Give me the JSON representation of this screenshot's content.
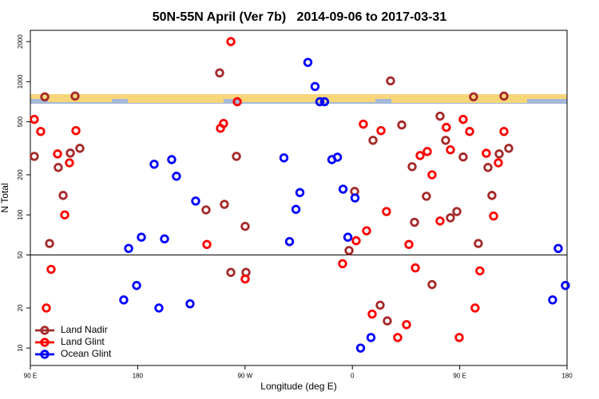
{
  "chart_data": {
    "type": "scatter",
    "title": "50N-55N April (Ver 7b)   2014-09-06 to 2017-03-31",
    "x_label": "Longitude (deg E)",
    "y_label": "N Total",
    "log_y": true,
    "xlim": [
      90,
      540
    ],
    "ylim": [
      7.4,
      2430
    ],
    "xticks": [
      {
        "value": 90,
        "label": "90 E"
      },
      180,
      {
        "value": 270,
        "label": "90 W"
      },
      {
        "value": 360,
        "label": "0"
      },
      {
        "value": 450,
        "label": "90 E"
      },
      {
        "value": 540,
        "label": "180"
      }
    ],
    "yticks": [
      10,
      20,
      50,
      100,
      200,
      500,
      1000,
      2000
    ],
    "hline": 50,
    "legend_position": "bottom-left",
    "series": [
      {
        "name": "Land Nadir",
        "color": "#a52a2a",
        "x": [
          102.1,
          93.3,
          106.1,
          113.4,
          117.5,
          123.5,
          127.5,
          131.5,
          248.7,
          252.7,
          237.3,
          262.8,
          270.1,
          258.1,
          270.8,
          357.2,
          361.9,
          377.3,
          383.3,
          389.3,
          392.0,
          401.4,
          410.1,
          412.1,
          422.1,
          426.8,
          433.5,
          438.2,
          442.2,
          447.6,
          452.9,
          461.6,
          465.6,
          473.7,
          477.0,
          483.1,
          487.1,
          491.1
        ],
        "values": [
          770,
          275,
          61,
          227,
          140,
          291,
          780,
          316,
          1165,
          120,
          109,
          275,
          82,
          37,
          37,
          54,
          150,
          363,
          21,
          16,
          1014,
          473,
          230,
          88,
          138,
          30,
          551,
          363,
          95,
          106,
          272,
          770,
          61,
          227,
          140,
          287,
          780,
          316
        ]
      },
      {
        "name": "Land Glint",
        "color": "#ff0000",
        "x": [
          93.3,
          98.7,
          112.8,
          122.8,
          118.8,
          128.2,
          107.4,
          103.4,
          258.1,
          263.5,
          252.0,
          249.4,
          238.0,
          270.1,
          351.8,
          363.2,
          369.2,
          371.9,
          384.0,
          376.6,
          388.6,
          398.0,
          405.4,
          407.4,
          412.8,
          416.8,
          422.8,
          426.8,
          433.5,
          438.8,
          442.2,
          449.6,
          452.9,
          458.3,
          472.3,
          482.4,
          478.4,
          487.1,
          462.9,
          466.9
        ],
        "values": [
          521,
          423,
          287,
          246,
          100,
          429,
          39,
          20,
          2000,
          707,
          486,
          447,
          60,
          33,
          43,
          64,
          480,
          76,
          429,
          18,
          106,
          12,
          15,
          60,
          40,
          279,
          299,
          200,
          90,
          454,
          308,
          12,
          521,
          423,
          290,
          246,
          98,
          423,
          20,
          38
        ]
      },
      {
        "name": "Ocean Glint",
        "color": "#0000ff",
        "x": [
          172.4,
          183.1,
          179.1,
          168.3,
          197.8,
          193.8,
          202.5,
          208.5,
          212.5,
          223.9,
          228.6,
          302.6,
          307.3,
          312.7,
          316.0,
          322.7,
          328.7,
          332.7,
          336.7,
          342.8,
          347.5,
          352.2,
          356.2,
          362.2,
          366.9,
          375.6,
          532.6,
          538.6,
          527.9
        ],
        "values": [
          56,
          68,
          29.5,
          23,
          20,
          240,
          66,
          260,
          195,
          21.5,
          127,
          268,
          63,
          110,
          147,
          1396,
          920,
          707,
          707,
          260,
          271,
          156,
          68,
          134,
          10,
          12,
          56,
          29.5,
          23
        ]
      }
    ]
  }
}
